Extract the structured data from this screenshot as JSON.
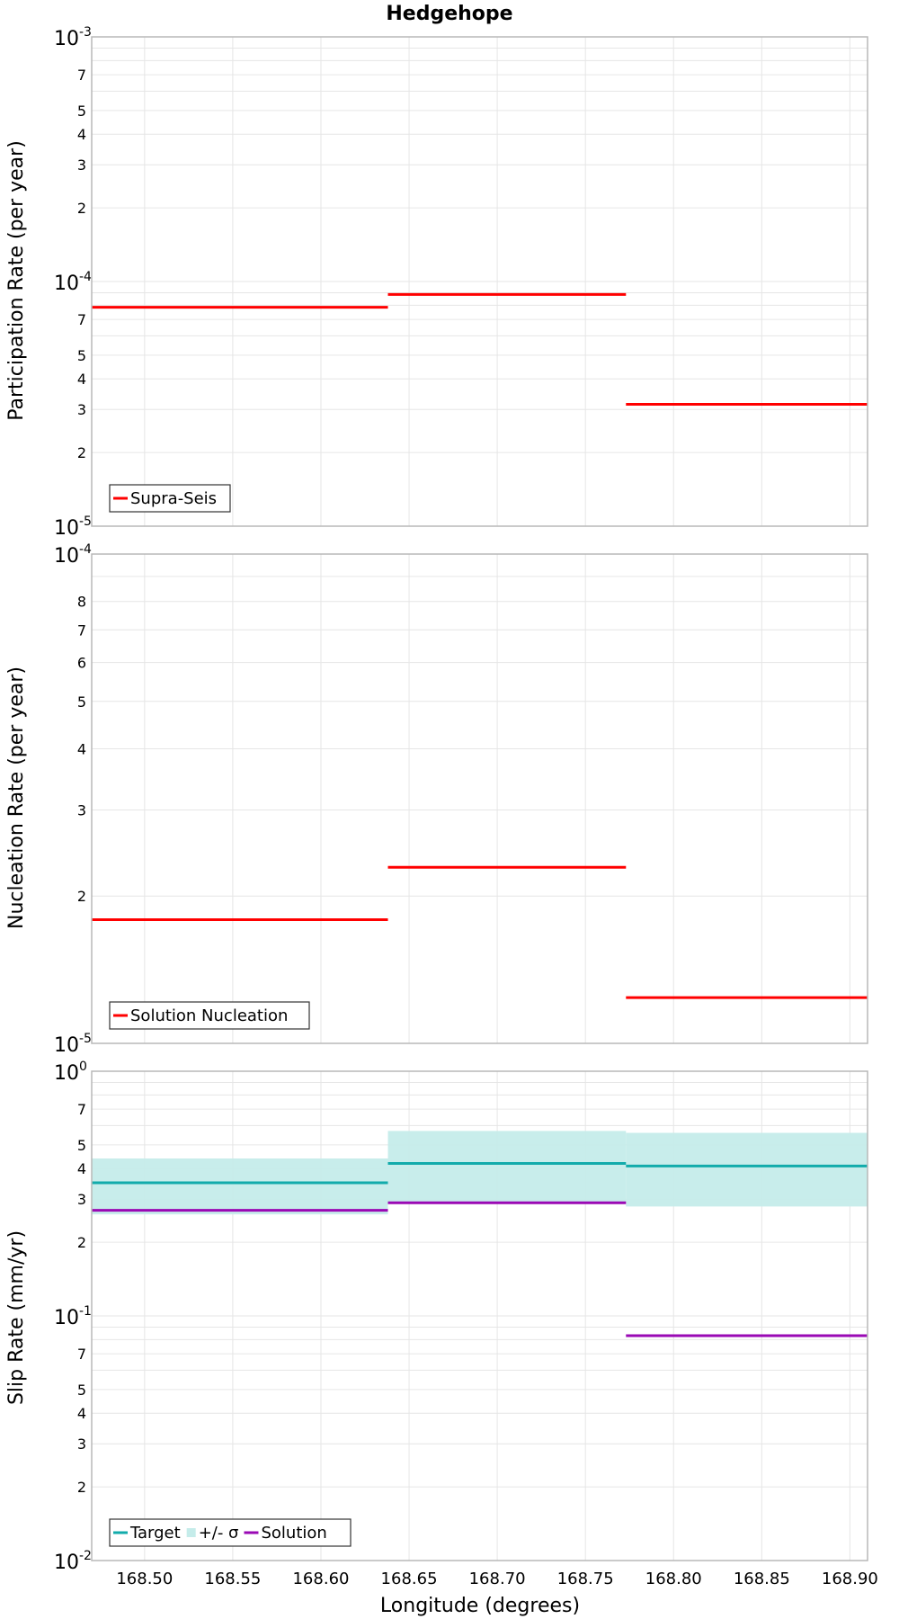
{
  "colors": {
    "supra_seis": "#ff0000",
    "solution_nucleation": "#ff0000",
    "target": "#12abab",
    "sigma_band": "#c5ecea",
    "solution": "#9a09b4"
  },
  "chart_data": [
    {
      "type": "line",
      "title": "Hedgehope",
      "xlabel": "",
      "ylabel": "Participation Rate (per year)",
      "yscale": "log",
      "xlim": [
        168.47,
        168.91
      ],
      "ylim": [
        1e-05,
        0.001
      ],
      "grid": true,
      "legend_position": "bottom-left",
      "y_major_ticks": [
        {
          "base": "10",
          "exp": "-3"
        },
        {
          "base": "10",
          "exp": "-4"
        },
        {
          "base": "10",
          "exp": "-5"
        }
      ],
      "y_minor_ticks": [
        "7",
        "5",
        "4",
        "3",
        "2",
        "7",
        "5",
        "4",
        "3",
        "2"
      ],
      "series": [
        {
          "name": "Supra-Seis",
          "style": "step",
          "segments": [
            {
              "x0": 168.47,
              "x1": 168.638,
              "y": 7.85e-05
            },
            {
              "x0": 168.638,
              "x1": 168.773,
              "y": 8.85e-05
            },
            {
              "x0": 168.773,
              "x1": 168.91,
              "y": 3.15e-05
            }
          ]
        }
      ]
    },
    {
      "type": "line",
      "title": "",
      "xlabel": "",
      "ylabel": "Nucleation Rate (per year)",
      "yscale": "log",
      "xlim": [
        168.47,
        168.91
      ],
      "ylim": [
        1e-05,
        0.0001
      ],
      "grid": true,
      "legend_position": "bottom-left",
      "y_major_ticks": [
        {
          "base": "10",
          "exp": "-4"
        },
        {
          "base": "10",
          "exp": "-5"
        }
      ],
      "y_minor_ticks": [
        "8",
        "7",
        "6",
        "5",
        "4",
        "3",
        "2"
      ],
      "series": [
        {
          "name": "Solution Nucleation",
          "style": "step",
          "segments": [
            {
              "x0": 168.47,
              "x1": 168.638,
              "y": 1.79e-05
            },
            {
              "x0": 168.638,
              "x1": 168.773,
              "y": 2.29e-05
            },
            {
              "x0": 168.773,
              "x1": 168.91,
              "y": 1.24e-05
            }
          ]
        }
      ]
    },
    {
      "type": "line",
      "title": "",
      "xlabel": "Longitude (degrees)",
      "ylabel": "Slip Rate (mm/yr)",
      "yscale": "log",
      "xlim": [
        168.47,
        168.91
      ],
      "ylim": [
        0.01,
        1
      ],
      "grid": true,
      "legend_position": "bottom-left",
      "x_ticks": [
        "168.50",
        "168.55",
        "168.60",
        "168.65",
        "168.70",
        "168.75",
        "168.80",
        "168.85",
        "168.90"
      ],
      "y_major_ticks": [
        {
          "base": "10",
          "exp": "0"
        },
        {
          "base": "10",
          "exp": "-1"
        },
        {
          "base": "10",
          "exp": "-2"
        }
      ],
      "y_minor_ticks": [
        "7",
        "5",
        "4",
        "3",
        "2",
        "7",
        "5",
        "4",
        "3",
        "2"
      ],
      "series": [
        {
          "name": "+/- σ",
          "style": "band",
          "segments": [
            {
              "x0": 168.47,
              "x1": 168.638,
              "low": 0.26,
              "high": 0.44
            },
            {
              "x0": 168.638,
              "x1": 168.773,
              "low": 0.29,
              "high": 0.57
            },
            {
              "x0": 168.773,
              "x1": 168.91,
              "low": 0.28,
              "high": 0.56
            }
          ]
        },
        {
          "name": "Target",
          "style": "step",
          "segments": [
            {
              "x0": 168.47,
              "x1": 168.638,
              "y": 0.35
            },
            {
              "x0": 168.638,
              "x1": 168.773,
              "y": 0.42
            },
            {
              "x0": 168.773,
              "x1": 168.91,
              "y": 0.41
            }
          ]
        },
        {
          "name": "Solution",
          "style": "step",
          "segments": [
            {
              "x0": 168.47,
              "x1": 168.638,
              "y": 0.27
            },
            {
              "x0": 168.638,
              "x1": 168.773,
              "y": 0.29
            },
            {
              "x0": 168.773,
              "x1": 168.91,
              "y": 0.083
            }
          ]
        }
      ]
    }
  ]
}
